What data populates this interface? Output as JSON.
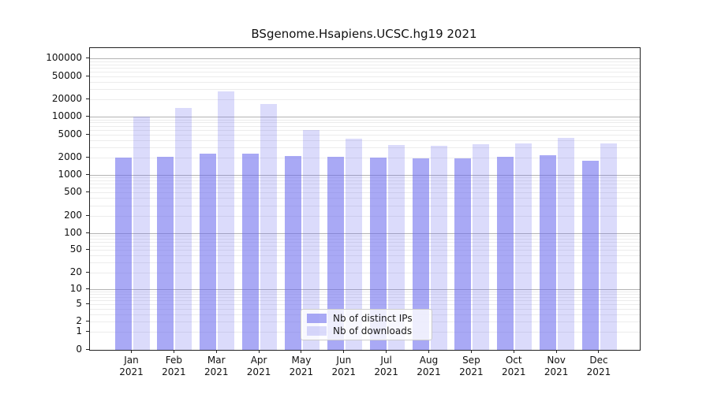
{
  "chart_data": {
    "type": "bar",
    "title": "BSgenome.Hsapiens.UCSC.hg19 2021",
    "categories": [
      "Jan",
      "Feb",
      "Mar",
      "Apr",
      "May",
      "Jun",
      "Jul",
      "Aug",
      "Sep",
      "Oct",
      "Nov",
      "Dec"
    ],
    "year_label": "2021",
    "series": [
      {
        "name": "Nb of distinct IPs",
        "color_rgb": "102,102,238",
        "alpha": 0.56,
        "values": [
          2050,
          2100,
          2400,
          2350,
          2150,
          2100,
          2000,
          1950,
          1950,
          2100,
          2200,
          1800
        ]
      },
      {
        "name": "Nb of downloads",
        "color_rgb": "102,102,238",
        "alpha": 0.235,
        "values": [
          10200,
          14500,
          28000,
          17000,
          6100,
          4300,
          3300,
          3200,
          3400,
          3600,
          4400,
          3500
        ]
      }
    ],
    "y_axis": {
      "scale": "log1p",
      "ylim": [
        0,
        100000
      ],
      "ticks": [
        100000,
        50000,
        20000,
        10000,
        5000,
        2000,
        1000,
        500,
        200,
        100,
        50,
        20,
        10,
        5,
        2,
        1,
        0
      ],
      "major_gridlines": [
        10,
        100,
        1000,
        10000,
        100000
      ]
    },
    "legend": {
      "entries": [
        "Nb of distinct IPs",
        "Nb of downloads"
      ],
      "position": "inside-bottom-center"
    },
    "grid": true
  }
}
